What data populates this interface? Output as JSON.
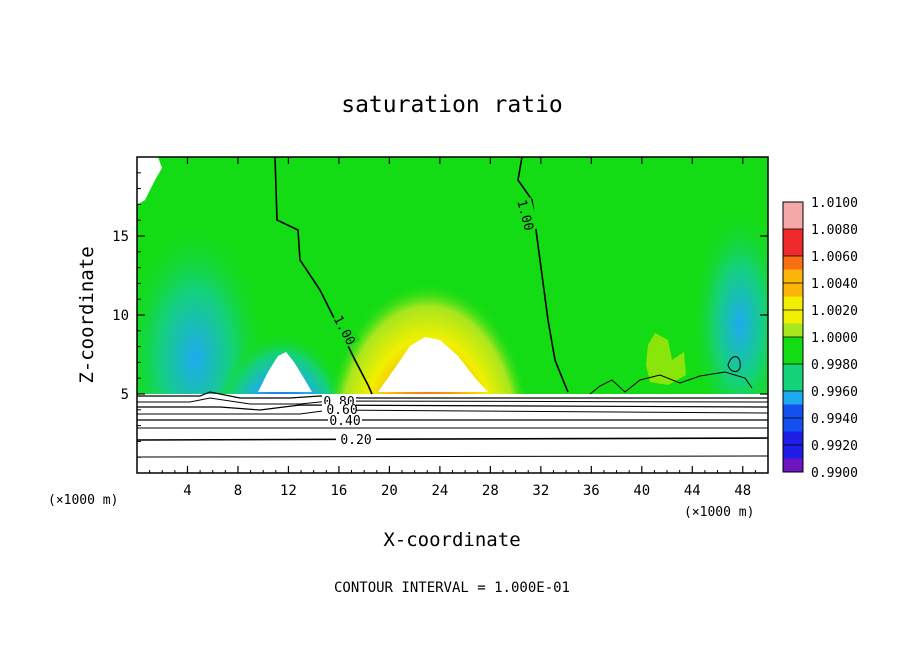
{
  "chart_data": {
    "type": "heatmap",
    "title": "saturation ratio",
    "xlabel": "X-coordinate",
    "ylabel": "Z-coordinate",
    "x_unit": "(×1000 m)",
    "x_unit_right": "(×1000 m)",
    "xlim": [
      0,
      50
    ],
    "ylim": [
      0,
      20
    ],
    "x_ticks": [
      4,
      8,
      12,
      16,
      20,
      24,
      28,
      32,
      36,
      40,
      44,
      48
    ],
    "y_ticks": [
      5,
      10,
      15
    ],
    "footer": "CONTOUR INTERVAL = 1.000E-01",
    "colorbar": {
      "labels": [
        "1.0100",
        "1.0080",
        "1.0060",
        "1.0040",
        "1.0020",
        "1.0000",
        "0.9980",
        "0.9960",
        "0.9940",
        "0.9920",
        "0.9900"
      ],
      "colors": [
        "#f4a8a8",
        "#ee2a2a",
        "#fa6e14",
        "#fab40a",
        "#f0f000",
        "#a8e61e",
        "#14dc14",
        "#14d278",
        "#1eaaf0",
        "#1450f0",
        "#1e1ee6",
        "#6e14be",
        "#aa8cbe"
      ]
    },
    "contours": [
      {
        "level": 1.0,
        "label": "1.00"
      },
      {
        "level": 0.8,
        "label": "0.80"
      },
      {
        "level": 0.6,
        "label": "0.60"
      },
      {
        "level": 0.4,
        "label": "0.40"
      },
      {
        "level": 0.2,
        "label": "0.20"
      }
    ],
    "features": [
      {
        "name": "dry minimum",
        "x": 11.2,
        "z_top": 7.8,
        "value": 0.99
      },
      {
        "name": "supersaturated maximum",
        "x": 23,
        "z_top": 8.7,
        "value": 1.01
      }
    ]
  }
}
